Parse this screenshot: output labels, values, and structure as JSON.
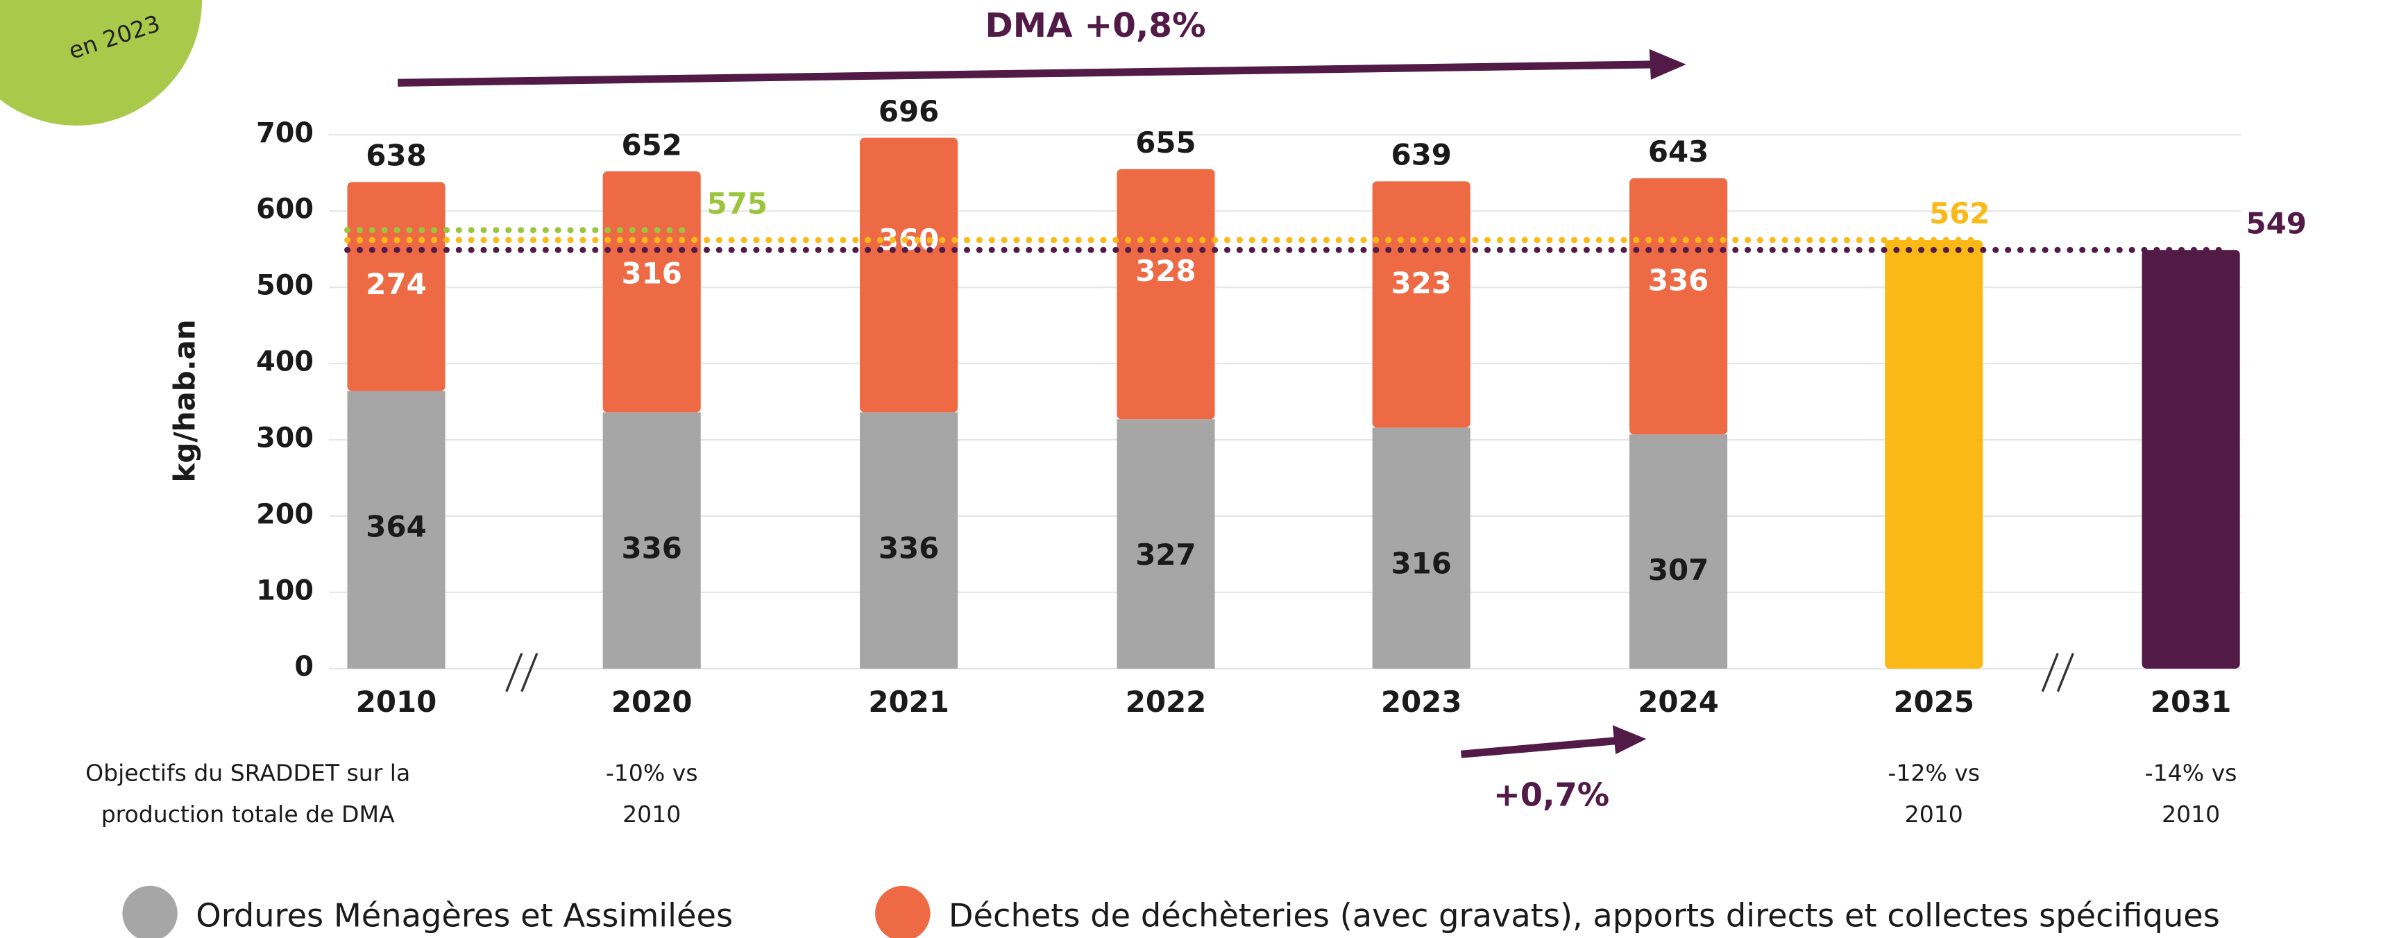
{
  "chart_data": {
    "type": "bar",
    "stacked": true,
    "badge": "en 2023",
    "headline": "DMA +0,8%",
    "sub_headline": "+0,7%",
    "ylabel": "kg/hab.an",
    "categories": [
      "2010",
      "2020",
      "2021",
      "2022",
      "2023",
      "2024",
      "2025",
      "2031"
    ],
    "series": [
      {
        "name": "Ordures Ménagères et Assimilées",
        "color": "#a6a6a6",
        "label_color": "#1a1a1a",
        "values": [
          364,
          336,
          336,
          327,
          316,
          307,
          null,
          null
        ]
      },
      {
        "name": "Déchets de déchèteries (avec gravats), apports directs et collectes spécifiques",
        "color": "#ee6a45",
        "label_color": "#ffffff",
        "values": [
          274,
          316,
          360,
          328,
          323,
          336,
          null,
          null
        ]
      }
    ],
    "totals": [
      638,
      652,
      696,
      655,
      639,
      643,
      null,
      null
    ],
    "target_bars": [
      {
        "category": "2025",
        "value": 562,
        "color": "#fbb917"
      },
      {
        "category": "2031",
        "value": 549,
        "color": "#521a47"
      }
    ],
    "reference_lines": [
      {
        "value": 575,
        "color": "#9bc53d",
        "from": "2010",
        "to": "2020"
      },
      {
        "value": 562,
        "color": "#fbb917",
        "from": "2010",
        "to": "2025"
      },
      {
        "value": 549,
        "color": "#521a47",
        "from": "2010",
        "to": "2031"
      }
    ],
    "notes_title": [
      "Objectifs du SRADDET sur la",
      "production totale de DMA"
    ],
    "notes": [
      {
        "category": "2020",
        "lines": [
          "-10% vs",
          "2010"
        ]
      },
      {
        "category": "2025",
        "lines": [
          "-12% vs",
          "2010"
        ]
      },
      {
        "category": "2031",
        "lines": [
          "-14% vs",
          "2010"
        ]
      }
    ],
    "ylim": [
      0,
      700
    ],
    "yticks": [
      0,
      100,
      200,
      300,
      400,
      500,
      600,
      700
    ],
    "grid": true
  }
}
